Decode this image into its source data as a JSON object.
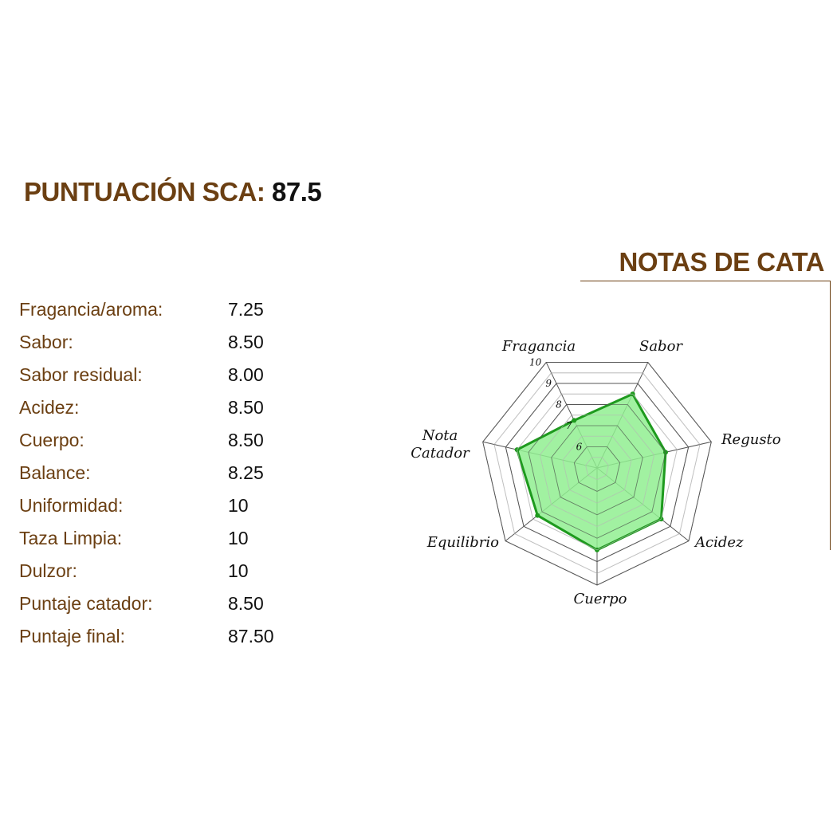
{
  "header": {
    "title_label": "PUNTUACIÓN SCA:",
    "title_score": "87.5"
  },
  "notas_title": "NOTAS DE CATA",
  "scores": [
    {
      "label": "Fragancia/aroma:",
      "value": "7.25"
    },
    {
      "label": "Sabor:",
      "value": "8.50"
    },
    {
      "label": "Sabor residual:",
      "value": "8.00"
    },
    {
      "label": "Acidez:",
      "value": "8.50"
    },
    {
      "label": "Cuerpo:",
      "value": "8.50"
    },
    {
      "label": "Balance:",
      "value": "8.25"
    },
    {
      "label": "Uniformidad:",
      "value": "10"
    },
    {
      "label": "Taza Limpia:",
      "value": "10"
    },
    {
      "label": "Dulzor:",
      "value": "10"
    },
    {
      "label": "Puntaje catador:",
      "value": "8.50"
    },
    {
      "label": "Puntaje final:",
      "value": "87.50"
    }
  ],
  "chart_data": {
    "type": "radar",
    "categories": [
      "Fragancia",
      "Sabor",
      "Regusto",
      "Acidez",
      "Cuerpo",
      "Equilibrio",
      "Nota Catador"
    ],
    "values": [
      7.25,
      8.5,
      8.0,
      8.5,
      8.5,
      8.25,
      8.5
    ],
    "rlim": [
      5,
      10
    ],
    "tick_labels": [
      "6",
      "7",
      "8",
      "9",
      "10"
    ],
    "grid": true,
    "colors": {
      "line": "#1e9a1e",
      "fill": "#90ee90",
      "grid": "#555555",
      "minor_grid": "#cccccc"
    }
  }
}
